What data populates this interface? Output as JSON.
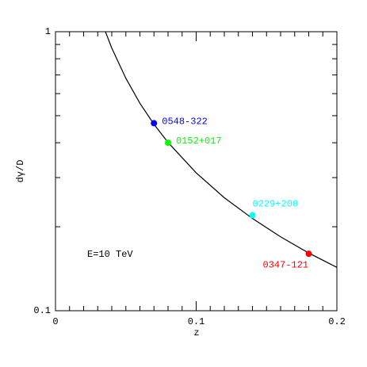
{
  "chart_data": {
    "type": "line",
    "xlabel": "z",
    "ylabel": "dγ/D",
    "annotation": "E=10 TeV",
    "xlim": [
      0,
      0.2
    ],
    "ylim": [
      0.1,
      1
    ],
    "yscale": "log",
    "xticks": [
      0,
      0.1,
      0.2
    ],
    "yticks": [
      0.1,
      1
    ],
    "x_minor_ticks": [
      0.01,
      0.02,
      0.03,
      0.04,
      0.05,
      0.06,
      0.07,
      0.08,
      0.09,
      0.11,
      0.12,
      0.13,
      0.14,
      0.15,
      0.16,
      0.17,
      0.18,
      0.19
    ],
    "y_minor_ticks": [
      0.2,
      0.3,
      0.4,
      0.5,
      0.6,
      0.7,
      0.8,
      0.9
    ],
    "curve": {
      "color": "#000000",
      "x": [
        0.0355,
        0.04,
        0.05,
        0.06,
        0.07,
        0.08,
        0.1,
        0.12,
        0.14,
        0.16,
        0.18,
        0.2
      ],
      "y": [
        1,
        0.874,
        0.681,
        0.554,
        0.466,
        0.401,
        0.312,
        0.254,
        0.214,
        0.184,
        0.161,
        0.143
      ]
    },
    "points": [
      {
        "label": "0548-322",
        "color": "#0000ff",
        "x": 0.07,
        "y": 0.47
      },
      {
        "label": "0152+017",
        "color": "#00ff00",
        "x": 0.08,
        "y": 0.4
      },
      {
        "label": "0229+200",
        "color": "#00ffff",
        "x": 0.14,
        "y": 0.22
      },
      {
        "label": "0347-121",
        "color": "#ff0000",
        "x": 0.18,
        "y": 0.16
      }
    ]
  }
}
